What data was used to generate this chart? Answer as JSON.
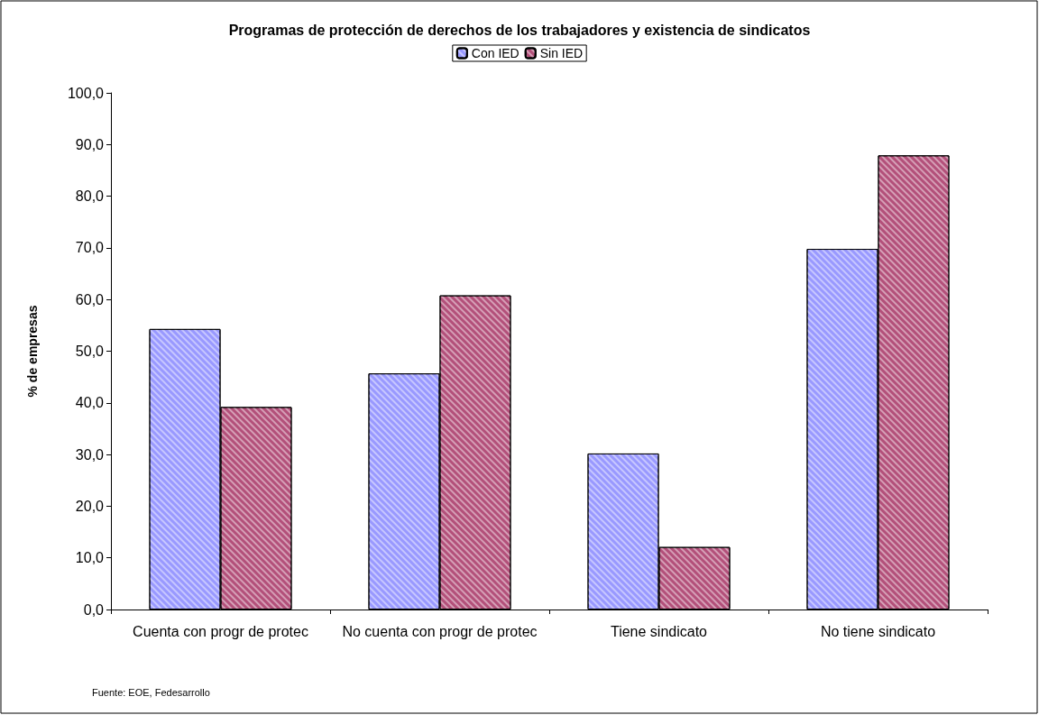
{
  "chart_data": {
    "type": "bar",
    "title": "Programas de protección de derechos de los trabajadores y existencia de sindicatos",
    "ylabel": "% de empresas",
    "categories": [
      "Cuenta con progr de protec",
      "No cuenta con progr de protec",
      "Tiene sindicato",
      "No tiene sindicato"
    ],
    "series": [
      {
        "name": "Con IED",
        "color": "#9999ff",
        "values": [
          54.3,
          45.7,
          30.2,
          69.8
        ]
      },
      {
        "name": "Sin IED",
        "color": "#b3507a",
        "values": [
          39.2,
          60.8,
          12.1,
          87.9
        ]
      }
    ],
    "ylim": [
      0,
      100
    ],
    "yticks": [
      {
        "value": 0,
        "label": "0,0"
      },
      {
        "value": 10,
        "label": "10,0"
      },
      {
        "value": 20,
        "label": "20,0"
      },
      {
        "value": 30,
        "label": "30,0"
      },
      {
        "value": 40,
        "label": "40,0"
      },
      {
        "value": 50,
        "label": "50,0"
      },
      {
        "value": 60,
        "label": "60,0"
      },
      {
        "value": 70,
        "label": "70,0"
      },
      {
        "value": 80,
        "label": "80,0"
      },
      {
        "value": 90,
        "label": "90,0"
      },
      {
        "value": 100,
        "label": "100,0"
      }
    ],
    "grid": false,
    "legend": "top",
    "annotations": [
      "Fuente: EOE, Fedesarrollo"
    ]
  }
}
